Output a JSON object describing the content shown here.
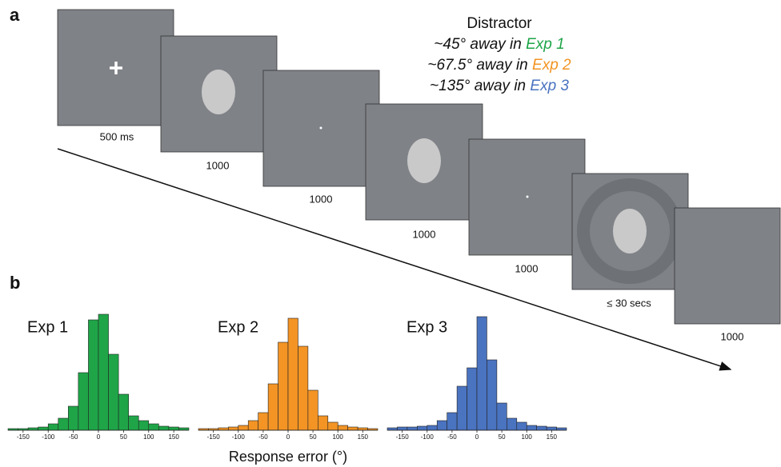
{
  "panel_a": {
    "label": "a",
    "frame_labels": [
      "500 ms",
      "1000",
      "1000",
      "1000",
      "1000",
      "≤ 30 secs",
      "1000"
    ],
    "distractor": {
      "title": "Distractor",
      "lines": [
        {
          "text": "~45° away in ",
          "exp": "Exp 1"
        },
        {
          "text": "~67.5° away in ",
          "exp": "Exp 2"
        },
        {
          "text": "~135° away in ",
          "exp": "Exp 3"
        }
      ]
    }
  },
  "panel_b": {
    "label": "b",
    "xlabel": "Response error (°)"
  },
  "chart_data": [
    {
      "type": "histogram",
      "title": "Exp 1",
      "color": "#1fa548",
      "bins": [
        -180,
        -160,
        -140,
        -120,
        -100,
        -80,
        -60,
        -40,
        -20,
        0,
        20,
        40,
        60,
        80,
        100,
        120,
        140,
        160,
        180
      ],
      "values": [
        2,
        2,
        3,
        4,
        8,
        15,
        30,
        72,
        138,
        145,
        95,
        45,
        18,
        12,
        8,
        5,
        4,
        3
      ],
      "xlim": [
        -180,
        180
      ],
      "ylim": [
        0,
        150
      ],
      "xticks": [
        -150,
        -100,
        -50,
        0,
        50,
        100,
        150
      ]
    },
    {
      "type": "histogram",
      "title": "Exp 2",
      "color": "#f39425",
      "bins": [
        -180,
        -160,
        -140,
        -120,
        -100,
        -80,
        -60,
        -40,
        -20,
        0,
        20,
        40,
        60,
        80,
        100,
        120,
        140,
        160,
        180
      ],
      "values": [
        2,
        2,
        3,
        4,
        6,
        12,
        22,
        58,
        110,
        140,
        105,
        50,
        18,
        10,
        6,
        4,
        3,
        2
      ],
      "xlim": [
        -180,
        180
      ],
      "ylim": [
        0,
        150
      ],
      "xticks": [
        -150,
        -100,
        -50,
        0,
        50,
        100,
        150
      ]
    },
    {
      "type": "histogram",
      "title": "Exp 3",
      "color": "#4a73c0",
      "bins": [
        -180,
        -160,
        -140,
        -120,
        -100,
        -80,
        -60,
        -40,
        -20,
        0,
        20,
        40,
        60,
        80,
        100,
        120,
        140,
        160,
        180
      ],
      "values": [
        3,
        4,
        4,
        5,
        6,
        12,
        22,
        55,
        78,
        142,
        88,
        34,
        15,
        10,
        6,
        5,
        4,
        3
      ],
      "xlim": [
        -180,
        180
      ],
      "ylim": [
        0,
        150
      ],
      "xticks": [
        -150,
        -100,
        -50,
        0,
        50,
        100,
        150
      ]
    }
  ]
}
